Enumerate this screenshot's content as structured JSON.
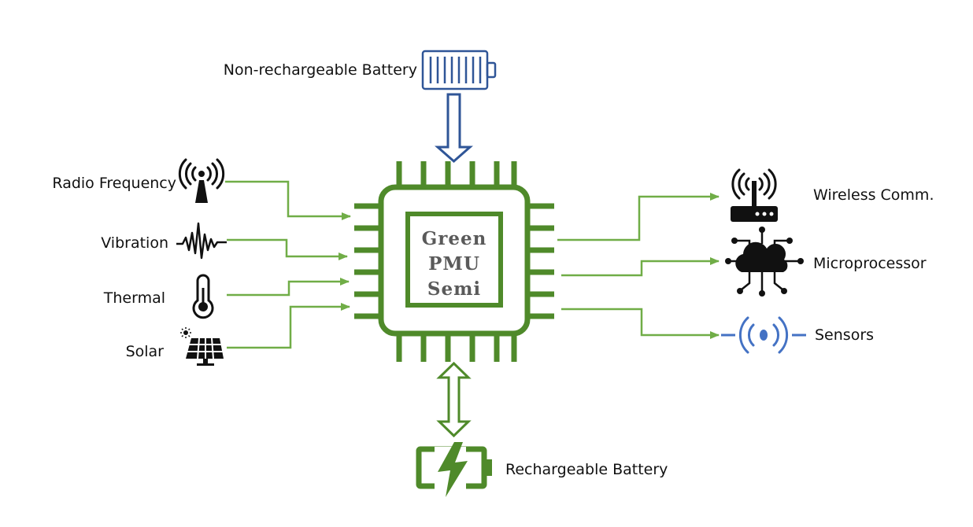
{
  "colors": {
    "green_chip": "#4f8a2a",
    "green_arrow": "#70ad47",
    "blue_battery": "#2f5597",
    "blue_sensor": "#4472c4",
    "icon_black": "#111111",
    "chip_text": "#5a5a5a"
  },
  "chip": {
    "line1": "Green",
    "line2": "PMU",
    "line3": "Semi"
  },
  "top": {
    "label": "Non-rechargeable Battery",
    "icon": "battery-icon"
  },
  "bottom": {
    "label": "Rechargeable Battery",
    "icon": "charging-battery-icon"
  },
  "inputs": [
    {
      "label": "Radio Frequency",
      "icon": "antenna-icon"
    },
    {
      "label": "Vibration",
      "icon": "vibration-wave-icon"
    },
    {
      "label": "Thermal",
      "icon": "thermometer-icon"
    },
    {
      "label": "Solar",
      "icon": "solar-panel-icon"
    }
  ],
  "outputs": [
    {
      "label": "Wireless Comm.",
      "icon": "router-icon"
    },
    {
      "label": "Microprocessor",
      "icon": "cloud-circuit-icon"
    },
    {
      "label": "Sensors",
      "icon": "sensor-signal-icon"
    }
  ]
}
